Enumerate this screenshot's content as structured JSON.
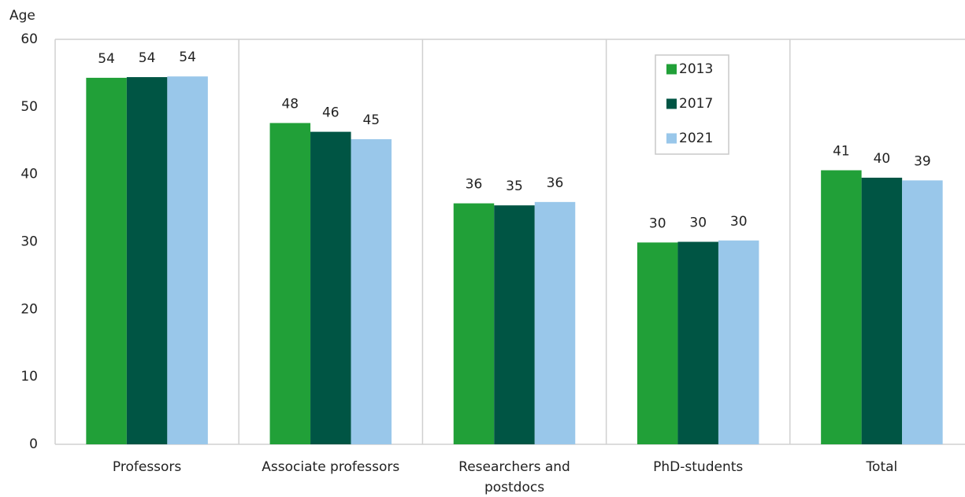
{
  "chart_data": {
    "type": "bar",
    "y_label": "Age",
    "categories": [
      "Professors",
      "Associate professors",
      "Researchers and postdocs",
      "PhD-students",
      "Total"
    ],
    "series": [
      {
        "name": "2013",
        "color": "#21a038",
        "values": [
          54.3,
          47.6,
          35.7,
          29.9,
          40.6
        ],
        "value_labels": [
          "54",
          "48",
          "36",
          "30",
          "41"
        ]
      },
      {
        "name": "2017",
        "color": "#005544",
        "values": [
          54.4,
          46.3,
          35.4,
          30.0,
          39.5
        ],
        "value_labels": [
          "54",
          "46",
          "35",
          "30",
          "40"
        ]
      },
      {
        "name": "2021",
        "color": "#99c7ea",
        "values": [
          54.5,
          45.2,
          35.9,
          30.2,
          39.1
        ],
        "value_labels": [
          "54",
          "45",
          "36",
          "30",
          "39"
        ]
      }
    ],
    "ylim": [
      0,
      60
    ],
    "yticks": [
      0,
      10,
      20,
      30,
      40,
      50,
      60
    ],
    "grid": false
  }
}
